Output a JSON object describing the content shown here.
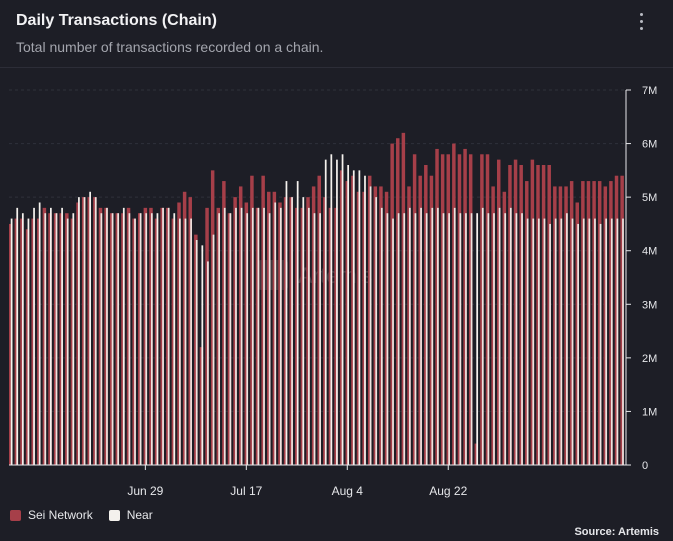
{
  "header": {
    "title": "Daily Transactions (Chain)",
    "subtitle": "Total number of transactions recorded on a chain."
  },
  "watermark": "Artemis",
  "source": "Source: Artemis",
  "colors": {
    "sei": "#a63f49",
    "near": "#f4f1ed",
    "grid": "#2f313b",
    "axis": "#e6e7ea"
  },
  "chart_data": {
    "type": "bar",
    "subtype": "overlapping-grouped",
    "title": "Daily Transactions (Chain)",
    "xlabel": "",
    "ylabel": "",
    "ylim": [
      0,
      7000000
    ],
    "y_ticks": [
      {
        "value": 0,
        "label": "0"
      },
      {
        "value": 1000000,
        "label": "1M"
      },
      {
        "value": 2000000,
        "label": "2M"
      },
      {
        "value": 3000000,
        "label": "3M"
      },
      {
        "value": 4000000,
        "label": "4M"
      },
      {
        "value": 5000000,
        "label": "5M"
      },
      {
        "value": 6000000,
        "label": "6M"
      },
      {
        "value": 7000000,
        "label": "7M"
      }
    ],
    "x_ticks": [
      {
        "index": 24,
        "label": "Jun 29"
      },
      {
        "index": 42,
        "label": "Jul 17"
      },
      {
        "index": 60,
        "label": "Aug 4"
      },
      {
        "index": 78,
        "label": "Aug 22"
      }
    ],
    "legend": [
      "Sei Network",
      "Near"
    ],
    "legend_position": "bottom-left",
    "series": [
      {
        "name": "Sei Network",
        "values": [
          4.5,
          4.6,
          4.6,
          4.4,
          4.6,
          4.6,
          4.8,
          4.7,
          4.7,
          4.7,
          4.7,
          4.6,
          4.9,
          5.0,
          5.0,
          5.0,
          4.8,
          4.8,
          4.7,
          4.7,
          4.7,
          4.8,
          4.6,
          4.7,
          4.8,
          4.8,
          4.6,
          4.8,
          4.8,
          4.6,
          4.9,
          5.1,
          5.0,
          4.3,
          2.2,
          4.8,
          5.5,
          4.8,
          5.3,
          4.7,
          5.0,
          5.2,
          4.9,
          5.4,
          4.8,
          5.4,
          5.1,
          5.1,
          4.9,
          5.0,
          5.0,
          4.8,
          4.8,
          5.0,
          5.2,
          5.4,
          5.0,
          4.8,
          4.8,
          5.5,
          5.3,
          5.4,
          5.1,
          5.1,
          5.4,
          5.2,
          5.2,
          5.1,
          6.0,
          6.1,
          6.2,
          5.2,
          5.8,
          5.4,
          5.6,
          5.4,
          5.9,
          5.8,
          5.8,
          6.0,
          5.8,
          5.9,
          5.8,
          0.4,
          5.8,
          5.8,
          5.2,
          5.7,
          5.1,
          5.6,
          5.7,
          5.6,
          5.3,
          5.7,
          5.6,
          5.6,
          5.6,
          5.2,
          5.2,
          5.2,
          5.3,
          4.9,
          5.3,
          5.3,
          5.3,
          5.3,
          5.2,
          5.3,
          5.4,
          5.4
        ]
      },
      {
        "name": "Near",
        "values": [
          4.6,
          4.8,
          4.7,
          4.6,
          4.8,
          4.9,
          4.7,
          4.8,
          4.7,
          4.8,
          4.6,
          4.7,
          5.0,
          5.0,
          5.1,
          5.0,
          4.7,
          4.8,
          4.7,
          4.7,
          4.8,
          4.7,
          4.6,
          4.7,
          4.7,
          4.7,
          4.7,
          4.8,
          4.8,
          4.7,
          4.6,
          4.6,
          4.6,
          4.2,
          4.1,
          3.8,
          4.3,
          4.7,
          4.8,
          4.7,
          4.8,
          4.8,
          4.7,
          4.8,
          4.8,
          4.8,
          4.7,
          4.9,
          4.8,
          5.3,
          5.0,
          5.3,
          5.0,
          4.8,
          4.7,
          4.7,
          5.7,
          5.8,
          5.7,
          5.8,
          5.6,
          5.5,
          5.5,
          5.4,
          5.2,
          5.0,
          4.8,
          4.7,
          4.6,
          4.7,
          4.7,
          4.8,
          4.7,
          4.8,
          4.7,
          4.8,
          4.8,
          4.7,
          4.7,
          4.8,
          4.7,
          4.7,
          4.7,
          4.7,
          4.8,
          4.7,
          4.7,
          4.8,
          4.7,
          4.8,
          4.7,
          4.7,
          4.6,
          4.6,
          4.6,
          4.6,
          4.5,
          4.6,
          4.6,
          4.7,
          4.6,
          4.5,
          4.6,
          4.6,
          4.6,
          4.5,
          4.6,
          4.6,
          4.6,
          4.6
        ]
      }
    ]
  }
}
